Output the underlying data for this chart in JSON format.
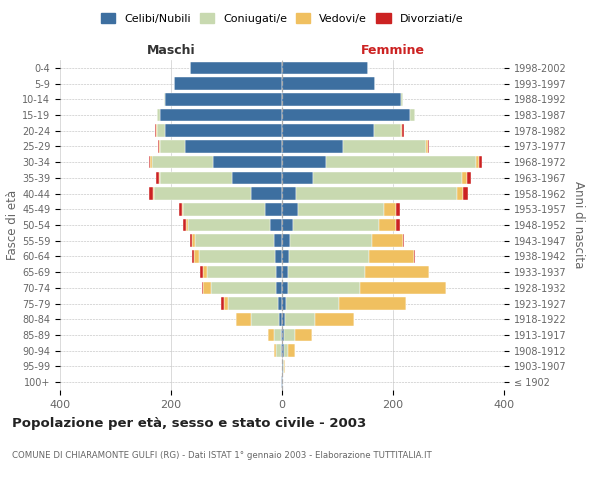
{
  "age_groups": [
    "100+",
    "95-99",
    "90-94",
    "85-89",
    "80-84",
    "75-79",
    "70-74",
    "65-69",
    "60-64",
    "55-59",
    "50-54",
    "45-49",
    "40-44",
    "35-39",
    "30-34",
    "25-29",
    "20-24",
    "15-19",
    "10-14",
    "5-9",
    "0-4"
  ],
  "birth_years": [
    "≤ 1902",
    "1903-1907",
    "1908-1912",
    "1913-1917",
    "1918-1922",
    "1923-1927",
    "1928-1932",
    "1933-1937",
    "1938-1942",
    "1943-1947",
    "1948-1952",
    "1953-1957",
    "1958-1962",
    "1963-1967",
    "1968-1972",
    "1973-1977",
    "1978-1982",
    "1983-1987",
    "1988-1992",
    "1993-1997",
    "1998-2002"
  ],
  "males": {
    "celibe": [
      1,
      0,
      2,
      2,
      5,
      7,
      10,
      10,
      12,
      14,
      22,
      30,
      55,
      90,
      125,
      175,
      210,
      220,
      210,
      195,
      165
    ],
    "coniugato": [
      0,
      0,
      8,
      12,
      50,
      90,
      118,
      125,
      138,
      143,
      148,
      148,
      175,
      130,
      110,
      45,
      15,
      5,
      2,
      0,
      0
    ],
    "vedovo": [
      0,
      0,
      5,
      12,
      28,
      8,
      14,
      8,
      8,
      5,
      3,
      3,
      2,
      2,
      2,
      2,
      2,
      0,
      0,
      0,
      0
    ],
    "divorziato": [
      0,
      0,
      0,
      0,
      0,
      5,
      3,
      5,
      5,
      3,
      5,
      5,
      8,
      5,
      3,
      2,
      2,
      0,
      0,
      0,
      0
    ]
  },
  "females": {
    "nubile": [
      1,
      2,
      3,
      4,
      5,
      8,
      10,
      10,
      12,
      15,
      20,
      28,
      25,
      55,
      80,
      110,
      165,
      230,
      215,
      168,
      155
    ],
    "coniugata": [
      0,
      2,
      8,
      20,
      55,
      95,
      130,
      140,
      145,
      148,
      155,
      155,
      290,
      270,
      270,
      150,
      50,
      10,
      3,
      0,
      0
    ],
    "vedova": [
      0,
      2,
      12,
      30,
      70,
      120,
      155,
      115,
      80,
      55,
      30,
      22,
      12,
      8,
      5,
      3,
      2,
      0,
      0,
      0,
      0
    ],
    "divorziata": [
      0,
      0,
      0,
      0,
      0,
      0,
      0,
      0,
      3,
      2,
      8,
      8,
      8,
      8,
      5,
      2,
      2,
      0,
      0,
      0,
      0
    ]
  },
  "colors": {
    "celibe_nubile": "#3d6fa0",
    "coniugato": "#c8d9b0",
    "vedovo": "#f0c060",
    "divorziato": "#cc2222"
  },
  "title": "Popolazione per età, sesso e stato civile - 2003",
  "subtitle": "COMUNE DI CHIARAMONTE GULFI (RG) - Dati ISTAT 1° gennaio 2003 - Elaborazione TUTTITALIA.IT",
  "label_maschi": "Maschi",
  "label_femmine": "Femmine",
  "ylabel_left": "Fasce di età",
  "ylabel_right": "Anni di nascita",
  "legend_labels": [
    "Celibi/Nubili",
    "Coniugati/e",
    "Vedovi/e",
    "Divorziati/e"
  ],
  "xlim": 400,
  "bg_color": "#ffffff",
  "grid_color": "#cccccc",
  "grid_color_dash": "#bbbbbb"
}
